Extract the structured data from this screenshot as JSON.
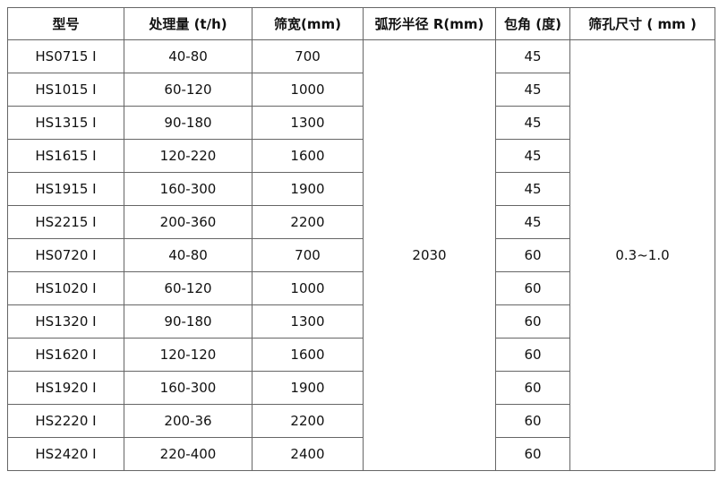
{
  "table": {
    "header": [
      "型号",
      "处理量 (t/h)",
      "筛宽(mm)",
      "弧形半径 R(mm)",
      "包角 (度)",
      "筛孔尺寸 ( mm )"
    ],
    "rows": [
      [
        "HS0715 I",
        "40-80",
        "700",
        "45"
      ],
      [
        "HS1015 I",
        "60-120",
        "1000",
        "45"
      ],
      [
        "HS1315 I",
        "90-180",
        "1300",
        "45"
      ],
      [
        "HS1615 I",
        "120-220",
        "1600",
        "45"
      ],
      [
        "HS1915 I",
        "160-300",
        "1900",
        "45"
      ],
      [
        "HS2215 I",
        "200-360",
        "2200",
        "45"
      ],
      [
        "HS0720 I",
        "40-80",
        "700",
        "60"
      ],
      [
        "HS1020 I",
        "60-120",
        "1000",
        "60"
      ],
      [
        "HS1320 I",
        "90-180",
        "1300",
        "60"
      ],
      [
        "HS1620 I",
        "120-120",
        "1600",
        "60"
      ],
      [
        "HS1920 I",
        "160-300",
        "1900",
        "60"
      ],
      [
        "HS2220 I",
        "200-36",
        "2200",
        "60"
      ],
      [
        "HS2420 I",
        "220-400",
        "2400",
        "60"
      ]
    ],
    "radius": "2030",
    "aperture": "0.3~1.0"
  }
}
